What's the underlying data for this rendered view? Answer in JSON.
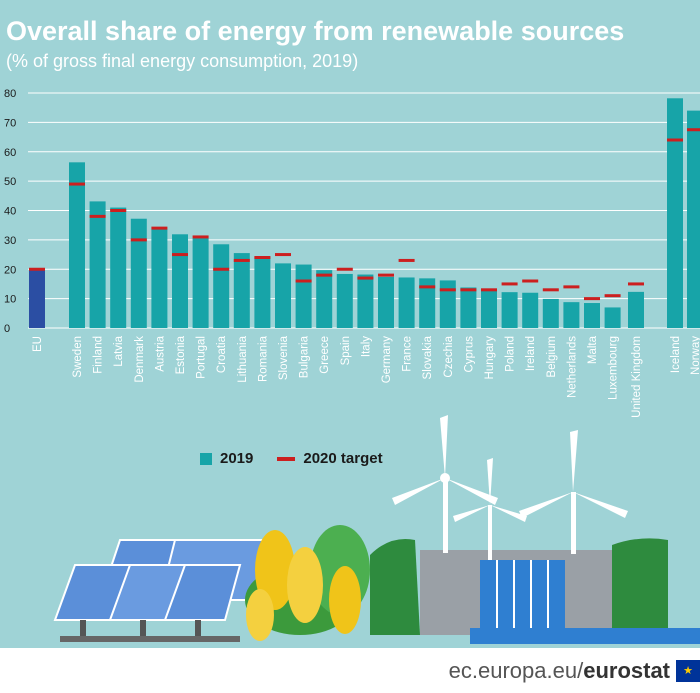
{
  "title": "Overall share of energy from renewable sources",
  "subtitle": "(% of gross final energy consumption, 2019)",
  "legend": {
    "series_2019": "2019",
    "series_target": "2020 target"
  },
  "footer": {
    "domain": "ec.europa.eu/",
    "brand": "eurostat"
  },
  "colors": {
    "bar": "#17a4a8",
    "eu_bar": "#2b4ea3",
    "target": "#cc1f1f",
    "background": "#9fd3d6"
  },
  "chart_data": {
    "type": "bar",
    "categories": [
      "EU",
      "Sweden",
      "Finland",
      "Latvia",
      "Denmark",
      "Austria",
      "Estonia",
      "Portugal",
      "Croatia",
      "Lithuania",
      "Romania",
      "Slovenia",
      "Bulgaria",
      "Greece",
      "Spain",
      "Italy",
      "Germany",
      "France",
      "Slovakia",
      "Czechia",
      "Cyprus",
      "Hungary",
      "Poland",
      "Ireland",
      "Belgium",
      "Netherlands",
      "Malta",
      "Luxembourg",
      "United Kingdom",
      "Iceland",
      "Norway"
    ],
    "series": [
      {
        "name": "2019",
        "values": [
          19.7,
          56.4,
          43.1,
          41.0,
          37.2,
          33.6,
          31.9,
          30.6,
          28.5,
          25.5,
          24.3,
          22.0,
          21.6,
          19.7,
          18.4,
          18.2,
          17.4,
          17.2,
          16.9,
          16.2,
          13.8,
          12.6,
          12.2,
          12.0,
          9.9,
          8.8,
          8.5,
          7.0,
          12.3,
          78.2,
          74.0
        ]
      },
      {
        "name": "2020 target",
        "values": [
          20,
          49,
          38,
          40,
          30,
          34,
          25,
          31,
          20,
          23,
          24,
          25,
          16,
          18,
          20,
          17,
          18,
          23,
          14,
          13,
          13,
          13,
          15,
          16,
          13,
          14,
          10,
          11,
          15,
          64,
          67.5
        ]
      }
    ],
    "ylim": [
      0,
      80
    ],
    "yticks": [
      0,
      10,
      20,
      30,
      40,
      50,
      60,
      70,
      80
    ],
    "grid": true,
    "legend_position": "bottom-center"
  }
}
